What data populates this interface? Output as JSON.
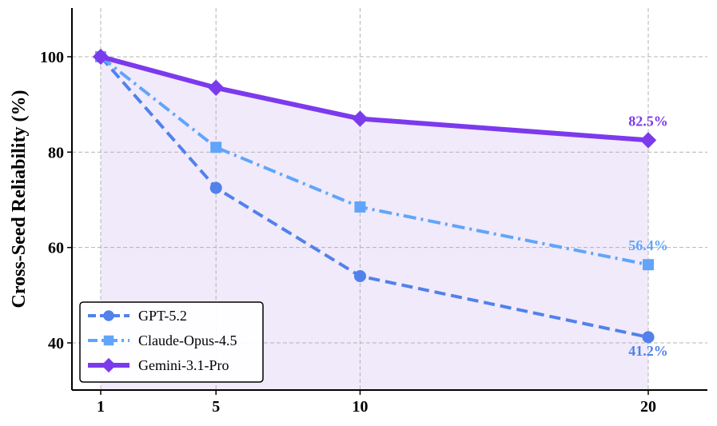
{
  "chart_data": {
    "type": "line",
    "title": "",
    "xlabel": "",
    "ylabel": "Cross-Seed Reliability (%)",
    "x": [
      1,
      5,
      10,
      20
    ],
    "x_tick_labels": [
      "1",
      "5",
      "10",
      "20"
    ],
    "y_ticks": [
      40,
      60,
      80,
      100
    ],
    "y_tick_labels": [
      "40",
      "60",
      "80",
      "100"
    ],
    "xlim": [
      0,
      22.1
    ],
    "ylim": [
      30,
      110
    ],
    "grid": true,
    "legend_position": "lower-left",
    "series": [
      {
        "name": "GPT-5.2",
        "values": [
          100,
          72.5,
          54.0,
          41.2
        ],
        "color": "#5181EB",
        "line_style": "dashed",
        "marker": "circle",
        "end_label": "41.2%"
      },
      {
        "name": "Claude-Opus-4.5",
        "values": [
          100,
          81.0,
          68.5,
          56.4
        ],
        "color": "#60A5FA",
        "line_style": "dashdot",
        "marker": "square",
        "end_label": "56.4%"
      },
      {
        "name": "Gemini-3.1-Pro",
        "values": [
          100,
          93.5,
          87.0,
          82.5
        ],
        "color": "#7C3AED",
        "line_style": "solid",
        "marker": "diamond",
        "end_label": "82.5%",
        "fill_below": true,
        "fill_color": "#F0EAFA"
      }
    ]
  }
}
